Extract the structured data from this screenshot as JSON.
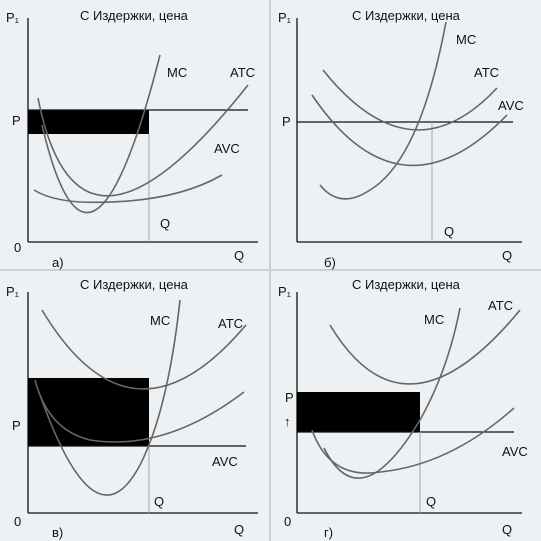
{
  "title": "С Издержки, цена",
  "panels": [
    {
      "id": "a",
      "caption": "а)",
      "y_axis_label": "P₁",
      "x_axis_label": "Q",
      "origin_label": "0",
      "price_label": "P",
      "quantity_label": "Q",
      "curve_labels": {
        "mc": "MC",
        "atc": "ATC",
        "avc": "AVC"
      }
    },
    {
      "id": "b",
      "caption": "б)",
      "y_axis_label": "P₁",
      "x_axis_label": "Q",
      "price_label": "P",
      "quantity_label": "Q",
      "curve_labels": {
        "mc": "MC",
        "atc": "ATC",
        "avc": "AVC"
      }
    },
    {
      "id": "v",
      "caption": "в)",
      "y_axis_label": "P₁",
      "x_axis_label": "Q",
      "origin_label": "0",
      "price_label": "P",
      "quantity_label": "Q",
      "curve_labels": {
        "mc": "MC",
        "atc": "ATC",
        "avc": "AVC"
      }
    },
    {
      "id": "g",
      "caption": "г)",
      "y_axis_label": "P₁",
      "x_axis_label": "Q",
      "origin_label": "0",
      "price_label": "P",
      "price_arrow": "↑",
      "quantity_label": "Q",
      "curve_labels": {
        "mc": "MC",
        "atc": "ATC",
        "avc": "AVC"
      }
    }
  ]
}
